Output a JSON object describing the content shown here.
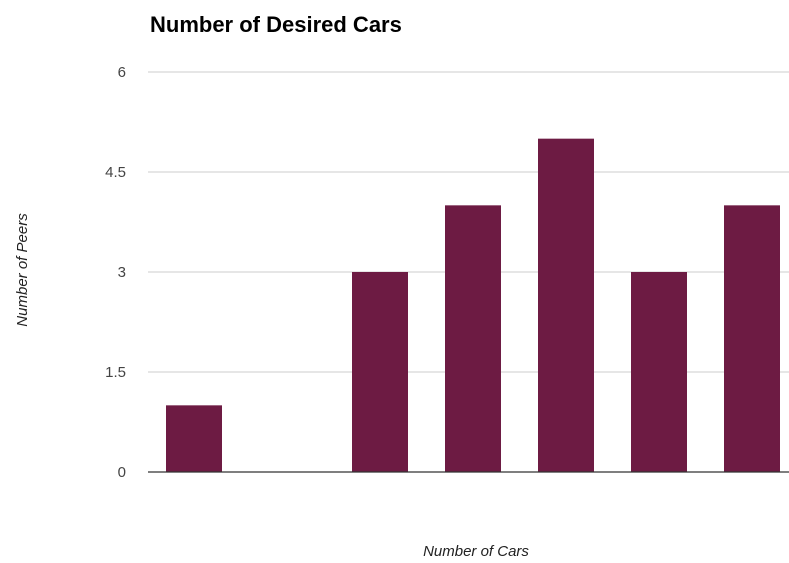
{
  "chart_data": {
    "type": "bar",
    "title": "Number of Desired Cars",
    "xlabel": "Number of Cars",
    "ylabel": "Number of Peers",
    "ylim": [
      0,
      6
    ],
    "yticks": [
      "0",
      "1.5",
      "3",
      "4.5",
      "6"
    ],
    "grid": true,
    "legend": "none",
    "bar_color": "#6d1b43",
    "categories": [
      "",
      "",
      "",
      "",
      "",
      "",
      ""
    ],
    "values": [
      1,
      0,
      3,
      4,
      5,
      3,
      4
    ]
  }
}
